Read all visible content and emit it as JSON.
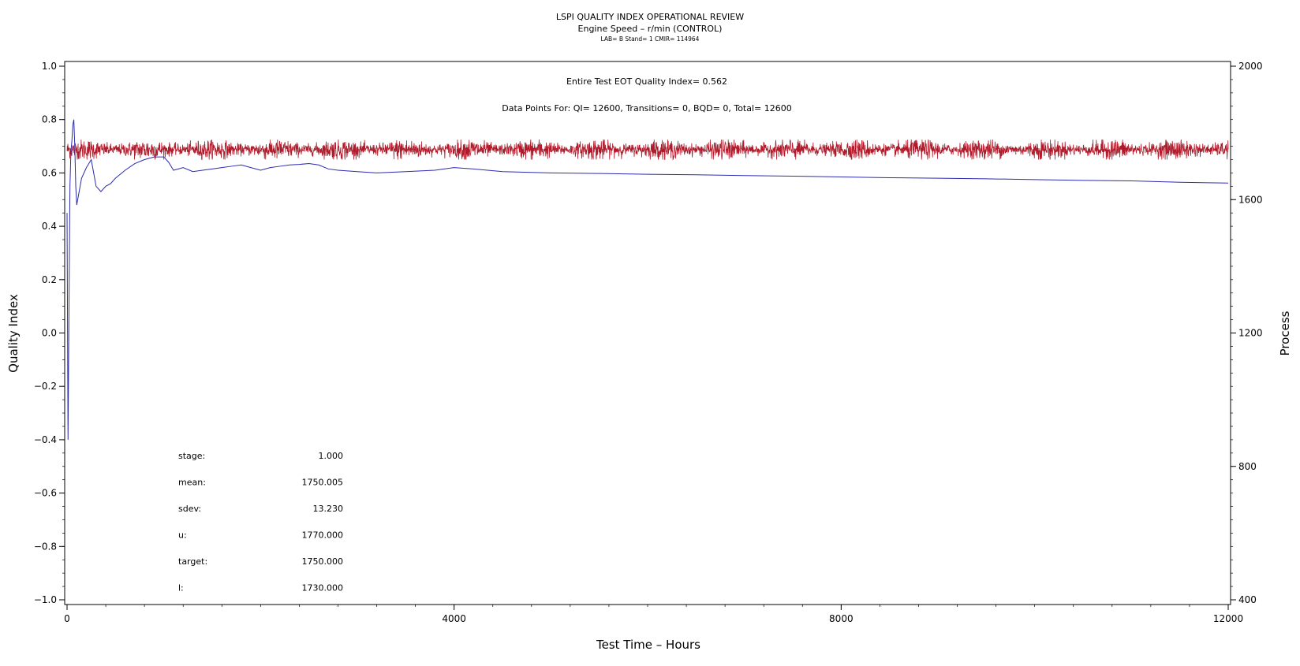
{
  "chart_data": {
    "type": "line",
    "title": "LSPI QUALITY INDEX OPERATIONAL REVIEW",
    "subtitle": "Engine Speed – r/min (CONTROL)",
    "subtitle2": "LAB= B Stand= 1 CMIR= 114964",
    "xlabel": "Test Time – Hours",
    "ylabel": "Quality Index",
    "ylabel_right": "Process",
    "xlim": [
      0,
      12000
    ],
    "ylim": [
      -1.0,
      1.0
    ],
    "ylim_right": [
      400,
      2000
    ],
    "x_ticks": [
      "0",
      "4000",
      "8000",
      "12000"
    ],
    "y_ticks": [
      "1.0",
      "0.8",
      "0.6",
      "0.4",
      "0.2",
      "0.0",
      "−0.2",
      "−0.4",
      "−0.6",
      "−0.8",
      "−1.0"
    ],
    "y_right_ticks": [
      "2000",
      "1600",
      "1200",
      "800",
      "400"
    ],
    "grid": false,
    "annotations": {
      "eot": "Entire Test EOT Quality Index=   0.562",
      "points": "Data Points For: QI= 12600, Transitions=     0, BQD=     0, Total= 12600"
    },
    "stats": [
      {
        "label": "stage:",
        "value": "1.000"
      },
      {
        "label": "mean:",
        "value": "1750.005"
      },
      {
        "label": "sdev:",
        "value": "13.230"
      },
      {
        "label": "u:",
        "value": "1770.000"
      },
      {
        "label": "target:",
        "value": "1750.000"
      },
      {
        "label": "l:",
        "value": "1730.000"
      }
    ],
    "series": [
      {
        "axis": "left",
        "color": "#2b2bb0",
        "x": [
          0,
          10,
          20,
          30,
          40,
          50,
          60,
          70,
          80,
          90,
          100,
          120,
          150,
          200,
          250,
          300,
          350,
          400,
          450,
          500,
          600,
          700,
          800,
          900,
          1000,
          1050,
          1100,
          1200,
          1300,
          1400,
          1500,
          1600,
          1700,
          1800,
          1900,
          2000,
          2100,
          2200,
          2300,
          2400,
          2500,
          2600,
          2700,
          2800,
          3000,
          3200,
          3500,
          3800,
          4000,
          4200,
          4500,
          5000,
          5500,
          6000,
          6500,
          7000,
          7500,
          8000,
          8500,
          9000,
          9500,
          10000,
          10500,
          11000,
          11500,
          12000
        ],
        "values": [
          0.45,
          -0.4,
          0.1,
          0.55,
          0.68,
          0.72,
          0.78,
          0.8,
          0.7,
          0.55,
          0.48,
          0.52,
          0.58,
          0.62,
          0.65,
          0.55,
          0.53,
          0.55,
          0.56,
          0.58,
          0.61,
          0.635,
          0.65,
          0.66,
          0.66,
          0.64,
          0.61,
          0.62,
          0.605,
          0.61,
          0.615,
          0.62,
          0.625,
          0.63,
          0.62,
          0.61,
          0.62,
          0.625,
          0.63,
          0.632,
          0.635,
          0.63,
          0.615,
          0.61,
          0.605,
          0.6,
          0.605,
          0.61,
          0.62,
          0.615,
          0.605,
          0.6,
          0.598,
          0.595,
          0.593,
          0.59,
          0.588,
          0.585,
          0.582,
          0.58,
          0.578,
          0.575,
          0.572,
          0.57,
          0.565,
          0.562
        ]
      },
      {
        "axis": "right",
        "color": "#b01a2a",
        "mean": 1750.005,
        "sdev": 13.23,
        "n": 12600,
        "x": [
          0,
          12000
        ],
        "values": [
          1730,
          1770
        ]
      }
    ]
  }
}
